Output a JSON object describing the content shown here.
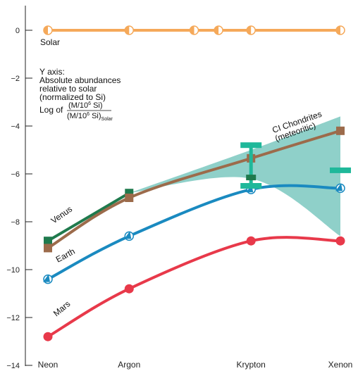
{
  "chart_data": {
    "type": "line",
    "categories": [
      "Neon",
      "Argon",
      "Krypton",
      "Xenon"
    ],
    "ylim": [
      -14,
      0.5
    ],
    "yticks": [
      0,
      -2,
      -4,
      -6,
      -8,
      -10,
      -12,
      -14
    ],
    "ytick_labels": [
      "0",
      "−2",
      "−4",
      "−6",
      "−8",
      "−10",
      "−12",
      "−14"
    ],
    "grid": false,
    "series": [
      {
        "name": "Solar",
        "color": "#f5a95a",
        "marker": "half-circle",
        "points": [
          {
            "x": 0,
            "y": 0
          },
          {
            "x": 1,
            "y": 0
          },
          {
            "x": 1.8,
            "y": 0
          },
          {
            "x": 2.1,
            "y": 0
          },
          {
            "x": 2.5,
            "y": 0
          },
          {
            "x": 3.6,
            "y": 0
          }
        ]
      },
      {
        "name": "Venus",
        "color": "#1f7a4d",
        "marker": "square",
        "points": [
          {
            "x": 0,
            "y": -8.8
          },
          {
            "x": 1,
            "y": -6.8
          }
        ]
      },
      {
        "name": "CI Chondrites",
        "name_line2": "(meteoritic)",
        "color": "#9c6b4b",
        "marker": "square",
        "points": [
          {
            "x": 0,
            "y": -9.1
          },
          {
            "x": 1,
            "y": -7.0
          },
          {
            "x": 2.5,
            "y": -5.35
          },
          {
            "x": 3.6,
            "y": -4.2
          }
        ]
      },
      {
        "name": "Earth",
        "color": "#1a8ac0",
        "marker": "triangle-circle",
        "points": [
          {
            "x": 0,
            "y": -10.4
          },
          {
            "x": 1,
            "y": -8.6
          },
          {
            "x": 2.5,
            "y": -6.65
          },
          {
            "x": 3.6,
            "y": -6.6
          }
        ]
      },
      {
        "name": "Mars",
        "color": "#e8394a",
        "marker": "circle",
        "points": [
          {
            "x": 0,
            "y": -12.8
          },
          {
            "x": 1,
            "y": -10.8
          },
          {
            "x": 2.5,
            "y": -8.8
          },
          {
            "x": 3.6,
            "y": -8.8
          }
        ]
      }
    ],
    "cat_x": [
      0,
      1,
      2.5,
      3.6
    ],
    "ci_band": {
      "color": "#8fd0c9",
      "x": [
        1,
        2.5,
        3.6
      ],
      "upper": [
        -6.8,
        -5.0,
        -3.6
      ],
      "lower": [
        -6.8,
        -6.2,
        -8.6
      ]
    },
    "krypton_marks": [
      {
        "x": 2.5,
        "y": -4.8,
        "color": "#1fb89a",
        "kind": "bar-wide"
      },
      {
        "x": 2.5,
        "y": -6.15,
        "color": "#1f7a4d",
        "kind": "box"
      },
      {
        "x": 2.5,
        "y": -6.5,
        "color": "#1fb89a",
        "kind": "bar-wide"
      }
    ],
    "xenon_marks": [
      {
        "x": 3.6,
        "y": -5.85,
        "color": "#1fb89a",
        "kind": "bar-wide"
      }
    ],
    "annotation": {
      "line1": "Y axis:",
      "line2": "Absolute abundances",
      "line3": "relative to solar",
      "line4": "(normalized to Si)",
      "log_prefix": "Log of",
      "numerator": "(M/10",
      "numerator_exp": "6",
      "numerator_end": " Si)",
      "denominator": "(M/10",
      "denominator_exp": "6",
      "denominator_end": " Si)",
      "denominator_sub": "Solar"
    }
  }
}
